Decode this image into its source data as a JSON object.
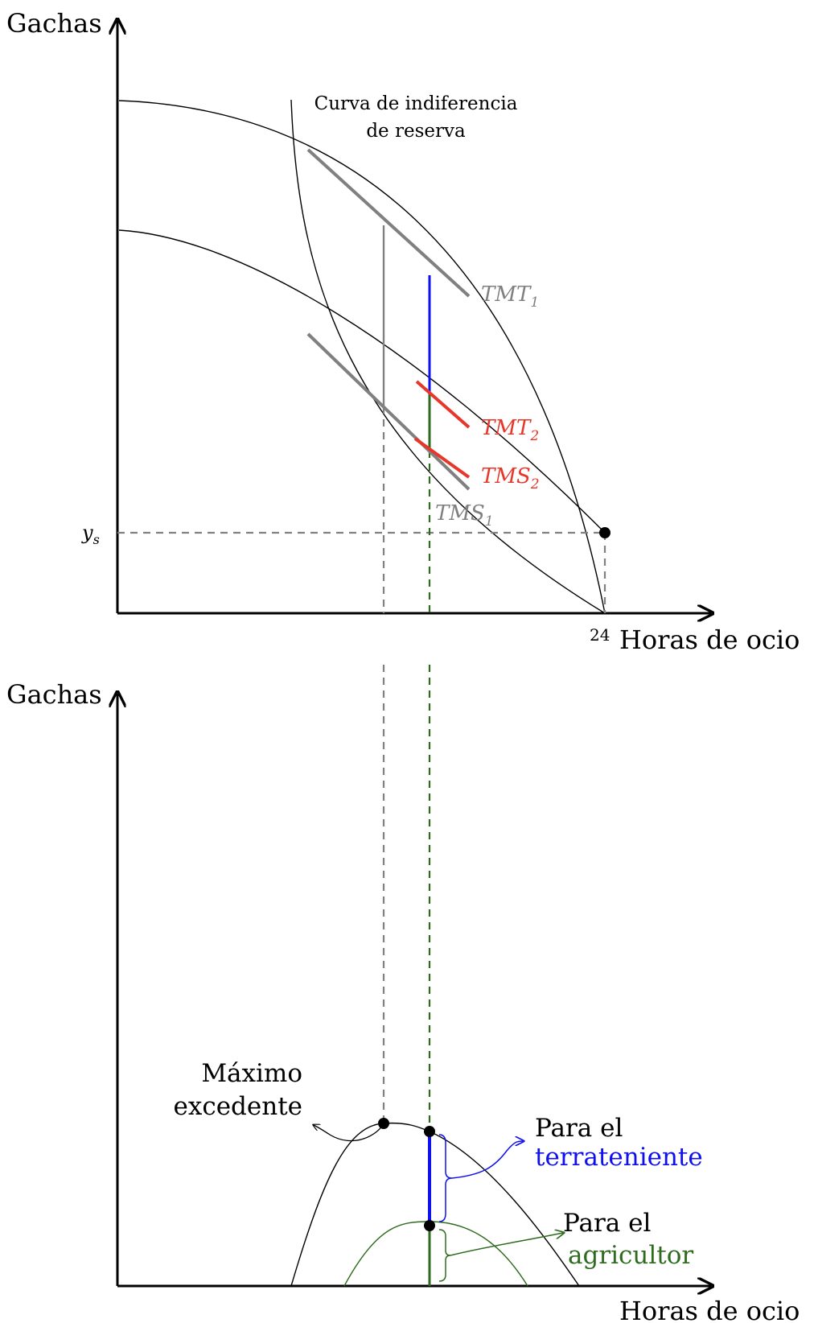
{
  "top_panel": {
    "y_axis_label": "Gachas",
    "x_axis_label": "Horas de ocio",
    "x_tick": "24",
    "ys_label_base": "y",
    "ys_label_sub": "s",
    "reservation_curve_label_line1": "Curva de indiferencia",
    "reservation_curve_label_line2": "de reserva",
    "tmt1": {
      "base": "TMT",
      "sub": "1"
    },
    "tmt2": {
      "base": "TMT",
      "sub": "2"
    },
    "tms2": {
      "base": "TMS",
      "sub": "2"
    },
    "tms1": {
      "base": "TMS",
      "sub": "1"
    }
  },
  "bottom_panel": {
    "y_axis_label": "Gachas",
    "x_axis_label": "Horas de ocio",
    "max_surplus_line1": "Máximo",
    "max_surplus_line2": "excedente",
    "landowner_line1": "Para el",
    "landowner_line2": "terrateniente",
    "farmer_line1": "Para el",
    "farmer_line2": "agricultor"
  },
  "colors": {
    "axis": "#000000",
    "gray": "#808080",
    "blue": "#1010ee",
    "green": "#2e6b1e",
    "red": "#e8362a"
  }
}
